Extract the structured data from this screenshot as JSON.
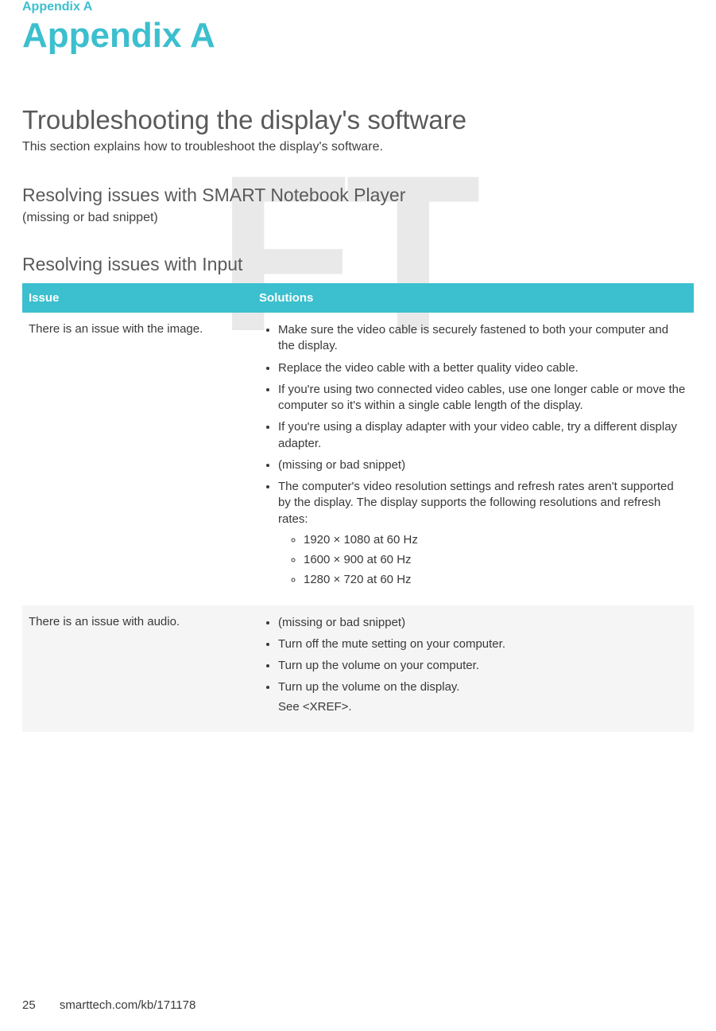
{
  "colors": {
    "accent": "#3cbfce",
    "text": "#464646",
    "heading": "#5a5a5a",
    "row_alt_bg": "#f5f5f5",
    "watermark": "#e9e9e9"
  },
  "watermark_text": "FT",
  "breadcrumb": "Appendix A",
  "page_title": "Appendix A",
  "section": {
    "title": "Troubleshooting the display's software",
    "description": "This section explains how to troubleshoot the display's software."
  },
  "sub1": {
    "heading": "Resolving issues with SMART Notebook Player",
    "body": "(missing or bad snippet)"
  },
  "sub2": {
    "heading": "Resolving issues with Input"
  },
  "table": {
    "headers": {
      "issue": "Issue",
      "solutions": "Solutions"
    },
    "rows": [
      {
        "issue": "There is an issue with the image.",
        "solutions": [
          "Make sure the video cable is securely fastened to both your computer and the display.",
          "Replace the video cable with a better quality video cable.",
          "If you're using two connected video cables, use one longer cable or move the computer so it's within a single cable length of the display.",
          "If you're using a display adapter with your video cable, try a different display adapter.",
          "(missing or bad snippet)",
          "The computer's video resolution settings and refresh rates aren't supported by the display. The display supports the following resolutions and refresh rates:"
        ],
        "sub": [
          "1920 × 1080 at 60 Hz",
          "1600 × 900 at 60 Hz",
          "1280 × 720 at 60 Hz"
        ]
      },
      {
        "issue": "There is an issue with audio.",
        "solutions": [
          "(missing or bad snippet)",
          "Turn off the mute setting on your computer.",
          "Turn up the volume on your computer.",
          "Turn up the volume on the display."
        ],
        "trailing": "See <XREF>."
      }
    ]
  },
  "footer": {
    "page_number": "25",
    "url": "smarttech.com/kb/171178"
  }
}
